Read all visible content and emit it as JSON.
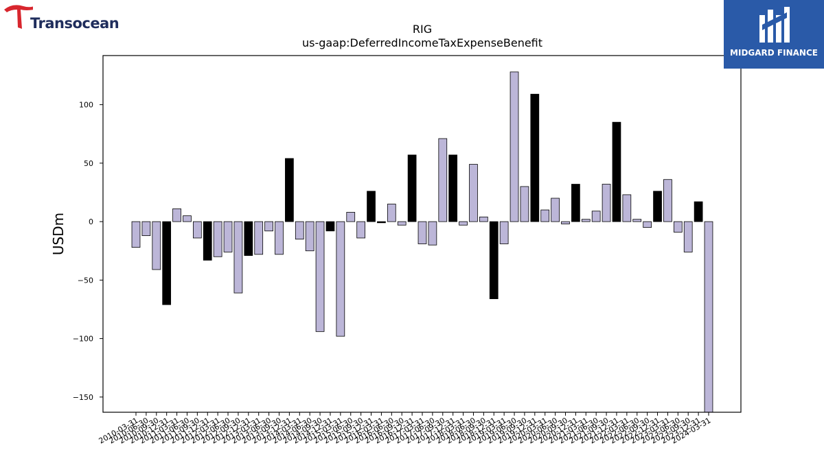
{
  "brand_left": {
    "name": "Transocean",
    "accent": "#d8262e",
    "text_color": "#1f2d5c"
  },
  "brand_right": {
    "name": "MIDGARD FINANCE",
    "background": "#2a5aa8"
  },
  "chart_data": {
    "type": "bar",
    "title": "RIG",
    "subtitle": "us-gaap:DeferredIncomeTaxExpenseBenefit",
    "xlabel": "",
    "ylabel": "USDm",
    "ylim": [
      -163,
      142
    ],
    "yticks": [
      -150,
      -100,
      -50,
      0,
      50,
      100
    ],
    "grid": false,
    "colors": {
      "default": "#bcb6d8",
      "highlight": "#000000",
      "edge": "#000000"
    },
    "categories": [
      "2010-03-31",
      "2010-06-30",
      "2010-09-30",
      "2010-12-31",
      "2011-03-31",
      "2011-06-30",
      "2011-09-30",
      "2011-12-31",
      "2012-03-31",
      "2012-06-30",
      "2012-09-30",
      "2012-12-31",
      "2013-03-31",
      "2013-06-30",
      "2013-09-30",
      "2013-12-31",
      "2014-03-31",
      "2014-06-30",
      "2014-09-30",
      "2014-12-31",
      "2015-03-31",
      "2015-06-30",
      "2015-09-30",
      "2015-12-31",
      "2016-03-31",
      "2016-06-30",
      "2016-09-30",
      "2016-12-31",
      "2017-03-31",
      "2017-06-30",
      "2017-09-30",
      "2017-12-31",
      "2018-03-31",
      "2018-06-30",
      "2018-09-30",
      "2018-12-31",
      "2019-03-31",
      "2019-06-30",
      "2019-09-30",
      "2019-12-31",
      "2020-03-31",
      "2020-06-30",
      "2020-09-30",
      "2020-12-31",
      "2021-03-31",
      "2021-06-30",
      "2021-09-30",
      "2021-12-31",
      "2022-03-31",
      "2022-06-30",
      "2022-09-30",
      "2022-12-31",
      "2023-03-31",
      "2023-06-30",
      "2023-09-30",
      "2023-12-31",
      "2024-03-31"
    ],
    "values": [
      -22,
      -12,
      -41,
      -71,
      11,
      5,
      -14,
      -33,
      -30,
      -26,
      -61,
      -29,
      -28,
      -8,
      -28,
      54,
      -15,
      -25,
      -94,
      -8,
      -98,
      8,
      -14,
      26,
      -1,
      15,
      -3,
      57,
      -19,
      -20,
      71,
      57,
      -3,
      49,
      4,
      -66,
      -19,
      128,
      30,
      109,
      10,
      20,
      -2,
      32,
      2,
      9,
      32,
      85,
      23,
      2,
      -5,
      26,
      36,
      -9,
      -26,
      17,
      -163
    ],
    "highlight": [
      false,
      false,
      false,
      true,
      false,
      false,
      false,
      true,
      false,
      false,
      false,
      true,
      false,
      false,
      false,
      true,
      false,
      false,
      false,
      true,
      false,
      false,
      false,
      true,
      true,
      false,
      false,
      true,
      false,
      false,
      false,
      true,
      false,
      false,
      false,
      true,
      false,
      false,
      false,
      true,
      false,
      false,
      false,
      true,
      false,
      false,
      false,
      true,
      false,
      false,
      false,
      true,
      false,
      false,
      false,
      true,
      false
    ]
  }
}
